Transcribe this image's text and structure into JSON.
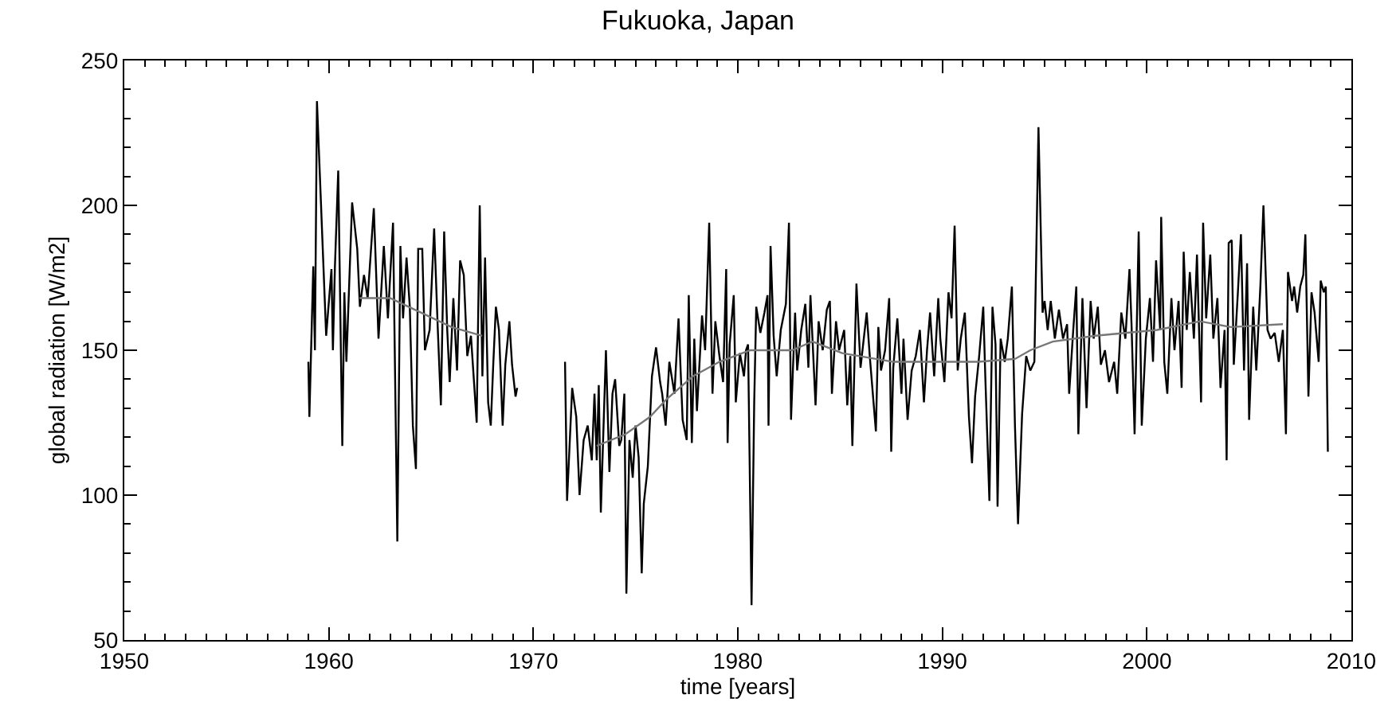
{
  "chart_data": {
    "type": "line",
    "title": "Fukuoka, Japan",
    "xlabel": "time [years]",
    "ylabel": "global radiation [W/m2]",
    "xlim": [
      1950,
      2010
    ],
    "xticks": [
      1950,
      1960,
      1970,
      1980,
      1990,
      2000,
      2010
    ],
    "ylim": [
      50,
      250
    ],
    "yticks": [
      50,
      100,
      150,
      200,
      250
    ],
    "line_style": "solid",
    "series": [
      {
        "color": "#000000",
        "x": [
          1959.0,
          1959.05,
          1959.24,
          1959.32,
          1959.42,
          1959.87,
          1960.13,
          1960.2,
          1960.3,
          1960.46,
          1960.66,
          1960.76,
          1960.86,
          1961.14,
          1961.39,
          1961.52,
          1961.72,
          1961.9,
          1962.2,
          1962.43,
          1962.69,
          1962.89,
          1963.14,
          1963.35,
          1963.5,
          1963.63,
          1963.8,
          1963.96,
          1964.11,
          1964.26,
          1964.37,
          1964.57,
          1964.7,
          1964.93,
          1965.15,
          1965.33,
          1965.48,
          1965.64,
          1965.79,
          1965.91,
          1966.09,
          1966.27,
          1966.42,
          1966.6,
          1966.77,
          1966.95,
          1967.23,
          1967.38,
          1967.51,
          1967.64,
          1967.79,
          1967.92,
          1968.04,
          1968.17,
          1968.32,
          1968.5,
          1968.63,
          1968.83,
          1968.96,
          1969.13,
          1969.21,
          1970.4,
          1971.55,
          1971.65,
          1971.9,
          1972.1,
          1972.26,
          1972.46,
          1972.66,
          1972.86,
          1972.99,
          1973.1,
          1973.2,
          1973.3,
          1973.55,
          1973.72,
          1973.87,
          1974.0,
          1974.2,
          1974.3,
          1974.45,
          1974.55,
          1974.7,
          1974.86,
          1975.0,
          1975.15,
          1975.3,
          1975.4,
          1975.6,
          1975.8,
          1976.0,
          1976.2,
          1976.3,
          1976.47,
          1976.65,
          1976.9,
          1977.1,
          1977.3,
          1977.5,
          1977.6,
          1977.75,
          1977.87,
          1978.0,
          1978.25,
          1978.4,
          1978.6,
          1978.76,
          1978.9,
          1979.1,
          1979.28,
          1979.43,
          1979.5,
          1979.6,
          1979.8,
          1979.9,
          1980.1,
          1980.3,
          1980.4,
          1980.5,
          1980.67,
          1980.8,
          1980.9,
          1981.1,
          1981.3,
          1981.45,
          1981.5,
          1981.6,
          1981.75,
          1981.9,
          1982.1,
          1982.35,
          1982.5,
          1982.6,
          1982.8,
          1982.9,
          1983.1,
          1983.3,
          1983.45,
          1983.55,
          1983.8,
          1983.95,
          1984.15,
          1984.35,
          1984.5,
          1984.6,
          1984.8,
          1984.95,
          1985.2,
          1985.35,
          1985.5,
          1985.6,
          1985.8,
          1986.0,
          1986.3,
          1986.45,
          1986.75,
          1986.87,
          1987.0,
          1987.2,
          1987.4,
          1987.5,
          1987.6,
          1987.8,
          1988.0,
          1988.1,
          1988.3,
          1988.5,
          1988.7,
          1988.9,
          1989.1,
          1989.25,
          1989.4,
          1989.6,
          1989.8,
          1989.9,
          1990.1,
          1990.3,
          1990.45,
          1990.6,
          1990.75,
          1990.9,
          1991.1,
          1991.3,
          1991.45,
          1991.6,
          1991.8,
          1992.0,
          1992.1,
          1992.3,
          1992.45,
          1992.6,
          1992.7,
          1992.85,
          1993.05,
          1993.2,
          1993.4,
          1993.55,
          1993.7,
          1993.9,
          1994.1,
          1994.3,
          1994.5,
          1994.7,
          1994.9,
          1995.0,
          1995.15,
          1995.3,
          1995.5,
          1995.7,
          1995.9,
          1996.1,
          1996.2,
          1996.4,
          1996.55,
          1996.65,
          1996.85,
          1997.05,
          1997.25,
          1997.4,
          1997.6,
          1997.75,
          1997.95,
          1998.15,
          1998.4,
          1998.55,
          1998.75,
          1998.95,
          1999.15,
          1999.25,
          1999.4,
          1999.6,
          1999.75,
          1999.95,
          2000.15,
          2000.3,
          2000.45,
          2000.65,
          2000.7,
          2000.85,
          2001.0,
          2001.2,
          2001.35,
          2001.55,
          2001.7,
          2001.8,
          2001.95,
          2002.1,
          2002.3,
          2002.45,
          2002.65,
          2002.75,
          2002.9,
          2003.1,
          2003.25,
          2003.45,
          2003.6,
          2003.8,
          2003.9,
          2004.0,
          2004.15,
          2004.25,
          2004.45,
          2004.6,
          2004.75,
          2004.9,
          2005.0,
          2005.2,
          2005.35,
          2005.55,
          2005.7,
          2005.9,
          2006.05,
          2006.25,
          2006.45,
          2006.65,
          2006.8,
          2006.9,
          2007.1,
          2007.2,
          2007.35,
          2007.5,
          2007.65,
          2007.75,
          2007.9,
          2008.05,
          2008.2,
          2008.4,
          2008.5,
          2008.65,
          2008.75,
          2008.85
        ],
        "values": [
          146,
          127,
          179,
          150,
          236,
          155,
          178,
          150,
          179,
          212,
          117,
          170,
          146,
          201,
          185,
          165,
          176,
          168,
          199,
          154,
          186,
          161,
          194,
          84,
          186,
          161,
          182,
          165,
          124,
          109,
          185,
          185,
          150,
          157,
          192,
          157,
          131,
          191,
          157,
          139,
          168,
          143,
          181,
          176,
          148,
          155,
          125,
          200,
          141,
          182,
          132,
          124,
          145,
          165,
          157,
          124,
          145,
          160,
          145,
          134,
          137,
          null,
          146,
          98,
          137,
          127,
          100,
          119,
          124,
          112,
          135,
          112,
          138,
          94,
          150,
          108,
          135,
          140,
          117,
          119,
          135,
          66,
          119,
          106,
          124,
          113,
          73,
          97,
          110,
          141,
          151,
          139,
          135,
          124,
          146,
          135,
          161,
          126,
          119,
          169,
          118,
          154,
          129,
          162,
          150,
          194,
          135,
          160,
          148,
          139,
          178,
          118,
          152,
          169,
          132,
          149,
          141,
          150,
          152,
          62,
          132,
          165,
          156,
          163,
          169,
          124,
          186,
          155,
          141,
          157,
          166,
          194,
          126,
          163,
          143,
          157,
          166,
          144,
          169,
          131,
          160,
          150,
          164,
          167,
          135,
          160,
          150,
          157,
          131,
          148,
          117,
          173,
          144,
          163,
          148,
          122,
          158,
          143,
          150,
          168,
          115,
          144,
          161,
          135,
          154,
          126,
          143,
          148,
          157,
          132,
          150,
          163,
          141,
          168,
          154,
          139,
          170,
          161,
          193,
          143,
          154,
          163,
          127,
          111,
          134,
          148,
          165,
          141,
          98,
          165,
          152,
          96,
          154,
          146,
          154,
          172,
          124,
          90,
          128,
          148,
          143,
          146,
          227,
          163,
          167,
          157,
          167,
          154,
          164,
          154,
          159,
          135,
          157,
          172,
          121,
          168,
          130,
          167,
          154,
          165,
          145,
          150,
          139,
          146,
          135,
          163,
          154,
          178,
          159,
          121,
          191,
          124,
          154,
          168,
          146,
          181,
          157,
          196,
          146,
          135,
          168,
          150,
          167,
          137,
          184,
          157,
          177,
          154,
          183,
          132,
          194,
          161,
          183,
          154,
          168,
          137,
          157,
          112,
          187,
          188,
          145,
          170,
          190,
          143,
          180,
          126,
          165,
          143,
          172,
          200,
          157,
          154,
          156,
          146,
          157,
          121,
          177,
          167,
          172,
          163,
          172,
          176,
          190,
          134,
          170,
          163,
          146,
          174,
          170,
          172,
          115
        ]
      },
      {
        "color": "#777777",
        "x": [
          1961.5,
          1963.0,
          1964.5,
          1966.0,
          1967.5,
          1970.3,
          1973.1,
          1974.5,
          1975.7,
          1976.5,
          1977.8,
          1979.1,
          1980.6,
          1982.65,
          1983.65,
          1985.1,
          1987.6,
          1990.2,
          1991.75,
          1993.55,
          1994.3,
          1995.4,
          1997.5,
          2000.5,
          2002.6,
          2004.1,
          2006.65
        ],
        "values": [
          168,
          168,
          163,
          158,
          155,
          null,
          117,
          121,
          127,
          133,
          141,
          146,
          150,
          150,
          153,
          149,
          146,
          146,
          146,
          147,
          150,
          153,
          155,
          157,
          160,
          158,
          159
        ]
      }
    ]
  }
}
